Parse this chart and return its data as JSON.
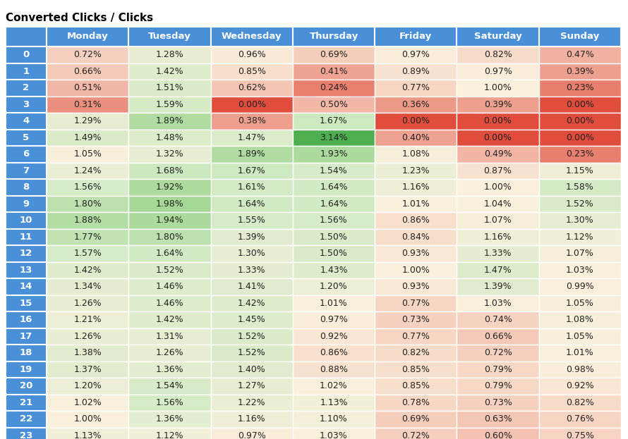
{
  "title": "Converted Clicks / Clicks",
  "columns": [
    "Monday",
    "Tuesday",
    "Wednesday",
    "Thursday",
    "Friday",
    "Saturday",
    "Sunday"
  ],
  "rows": [
    0,
    1,
    2,
    3,
    4,
    5,
    6,
    7,
    8,
    9,
    10,
    11,
    12,
    13,
    14,
    15,
    16,
    17,
    18,
    19,
    20,
    21,
    22,
    23
  ],
  "values": [
    [
      0.72,
      1.28,
      0.96,
      0.69,
      0.97,
      0.82,
      0.47
    ],
    [
      0.66,
      1.42,
      0.85,
      0.41,
      0.89,
      0.97,
      0.39
    ],
    [
      0.51,
      1.51,
      0.62,
      0.24,
      0.77,
      1.0,
      0.23
    ],
    [
      0.31,
      1.59,
      0.0,
      0.5,
      0.36,
      0.39,
      0.0
    ],
    [
      1.29,
      1.89,
      0.38,
      1.67,
      0.0,
      0.0,
      0.0
    ],
    [
      1.49,
      1.48,
      1.47,
      3.14,
      0.4,
      0.0,
      0.0
    ],
    [
      1.05,
      1.32,
      1.89,
      1.93,
      1.08,
      0.49,
      0.23
    ],
    [
      1.24,
      1.68,
      1.67,
      1.54,
      1.23,
      0.87,
      1.15
    ],
    [
      1.56,
      1.92,
      1.61,
      1.64,
      1.16,
      1.0,
      1.58
    ],
    [
      1.8,
      1.98,
      1.64,
      1.64,
      1.01,
      1.04,
      1.52
    ],
    [
      1.88,
      1.94,
      1.55,
      1.56,
      0.86,
      1.07,
      1.3
    ],
    [
      1.77,
      1.8,
      1.39,
      1.5,
      0.84,
      1.16,
      1.12
    ],
    [
      1.57,
      1.64,
      1.3,
      1.5,
      0.93,
      1.33,
      1.07
    ],
    [
      1.42,
      1.52,
      1.33,
      1.43,
      1.0,
      1.47,
      1.03
    ],
    [
      1.34,
      1.46,
      1.41,
      1.2,
      0.93,
      1.39,
      0.99
    ],
    [
      1.26,
      1.46,
      1.42,
      1.01,
      0.77,
      1.03,
      1.05
    ],
    [
      1.21,
      1.42,
      1.45,
      0.97,
      0.73,
      0.74,
      1.08
    ],
    [
      1.26,
      1.31,
      1.52,
      0.92,
      0.77,
      0.66,
      1.05
    ],
    [
      1.38,
      1.26,
      1.52,
      0.86,
      0.82,
      0.72,
      1.01
    ],
    [
      1.37,
      1.36,
      1.4,
      0.88,
      0.85,
      0.79,
      0.98
    ],
    [
      1.2,
      1.54,
      1.27,
      1.02,
      0.85,
      0.79,
      0.92
    ],
    [
      1.02,
      1.56,
      1.22,
      1.13,
      0.78,
      0.73,
      0.82
    ],
    [
      1.0,
      1.36,
      1.16,
      1.1,
      0.69,
      0.63,
      0.76
    ],
    [
      1.13,
      1.12,
      0.97,
      1.03,
      0.72,
      0.6,
      0.75
    ]
  ],
  "header_bg": "#4A90D9",
  "header_text": "#FFFFFF",
  "row_header_bg": "#4A90D9",
  "row_header_text": "#FFFFFF",
  "title_color": "#000000",
  "title_fontsize": 11,
  "header_fontsize": 9.5,
  "cell_fontsize": 9,
  "row_label_fontsize": 9.5,
  "vmin": 0.0,
  "vmid": 1.0,
  "vmax": 3.14
}
